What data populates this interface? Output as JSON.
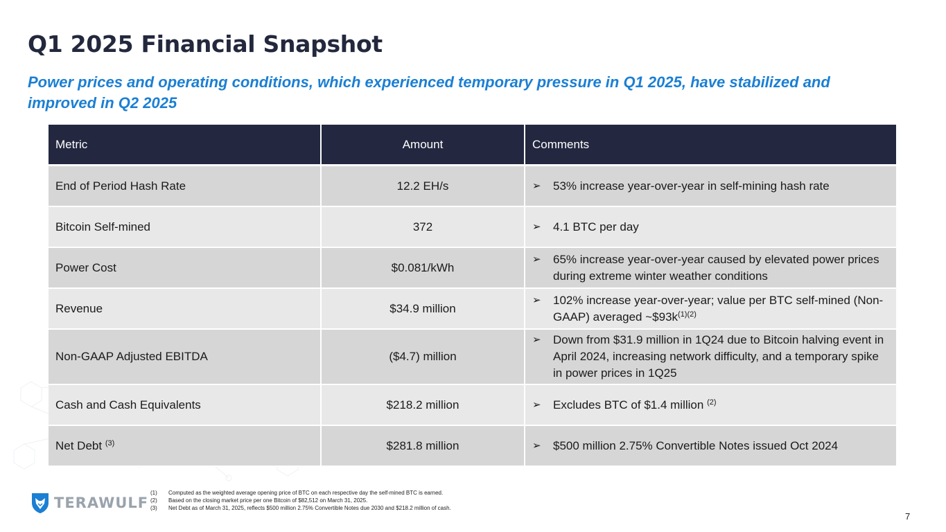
{
  "title": "Q1 2025 Financial Snapshot",
  "subtitle": "Power prices and operating conditions, which experienced temporary pressure in Q1 2025, have stabilized and improved in Q2 2025",
  "table": {
    "headers": {
      "metric": "Metric",
      "amount": "Amount",
      "comments": "Comments"
    },
    "bullet_glyph": "➢",
    "rows": [
      {
        "metric": "End of Period Hash Rate",
        "metric_sup": "",
        "amount": "12.2 EH/s",
        "comment": "53% increase year-over-year in self-mining hash rate",
        "comment_sup": ""
      },
      {
        "metric": "Bitcoin Self-mined",
        "metric_sup": "",
        "amount": "372",
        "comment": "4.1 BTC per day",
        "comment_sup": ""
      },
      {
        "metric": "Power Cost",
        "metric_sup": "",
        "amount": "$0.081/kWh",
        "comment": "65% increase year-over-year caused by elevated power prices during extreme winter weather conditions",
        "comment_sup": ""
      },
      {
        "metric": "Revenue",
        "metric_sup": "",
        "amount": "$34.9 million",
        "comment": "102% increase year-over-year; value per BTC self-mined (Non-GAAP) averaged ~$93k",
        "comment_sup": "(1)(2)"
      },
      {
        "metric": "Non-GAAP Adjusted EBITDA",
        "metric_sup": "",
        "amount": "($4.7) million",
        "comment": "Down from $31.9 million in 1Q24 due to Bitcoin halving event in April 2024, increasing network difficulty, and a temporary spike in power prices in 1Q25",
        "comment_sup": ""
      },
      {
        "metric": "Cash and Cash Equivalents",
        "metric_sup": "",
        "amount": "$218.2 million",
        "comment": "Excludes BTC of $1.4 million",
        "comment_sup": "(2)"
      },
      {
        "metric": "Net Debt",
        "metric_sup": "(3)",
        "amount": "$281.8 million",
        "comment": "$500 million 2.75% Convertible Notes issued Oct 2024",
        "comment_sup": ""
      }
    ]
  },
  "footnotes": [
    {
      "num": "(1)",
      "text": "Computed as the weighted average opening price of BTC on each respective day the self-mined BTC is earned."
    },
    {
      "num": "(2)",
      "text": "Based on the closing market price per one Bitcoin of $82,512 on March 31, 2025."
    },
    {
      "num": "(3)",
      "text": "Net Debt as of March 31, 2025, reflects $500 million 2.75% Convertible Notes due 2030 and $218.2 million of cash."
    }
  ],
  "logo": {
    "text": "TERAWULF",
    "icon": "wolf-shield-icon"
  },
  "page_number": "7",
  "colors": {
    "header_bg": "#232840",
    "title": "#23283d",
    "subtitle": "#1b7fd3",
    "row_dark": "#d6d6d6",
    "row_light": "#e8e8e8"
  }
}
